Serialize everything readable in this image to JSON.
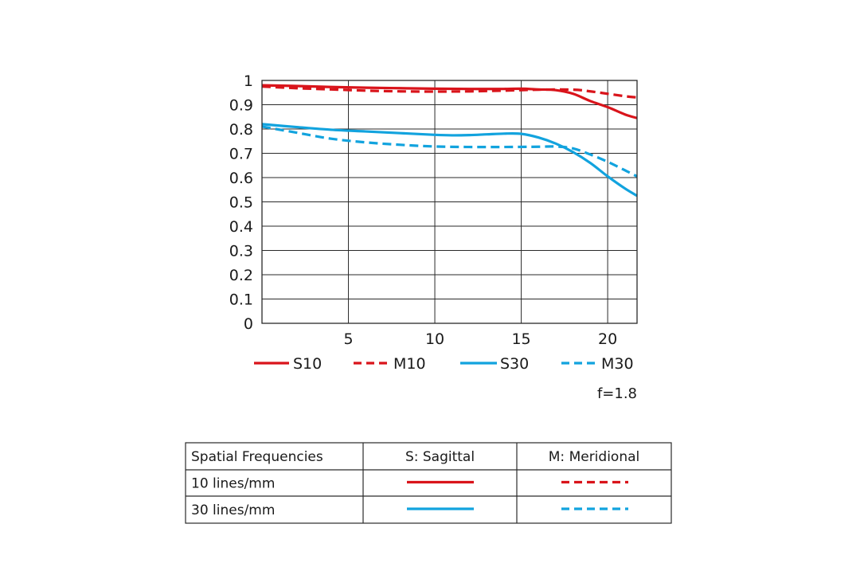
{
  "chart_data": {
    "type": "line",
    "xlim": [
      0,
      21.7
    ],
    "ylim": [
      0,
      1
    ],
    "x_ticks": [
      5,
      10,
      15,
      20
    ],
    "y_ticks": [
      {
        "value": 0,
        "label": "0"
      },
      {
        "value": 0.1,
        "label": "0.1"
      },
      {
        "value": 0.2,
        "label": "0.2"
      },
      {
        "value": 0.3,
        "label": "0.3"
      },
      {
        "value": 0.4,
        "label": "0.4"
      },
      {
        "value": 0.5,
        "label": "0.5"
      },
      {
        "value": 0.6,
        "label": "0.6"
      },
      {
        "value": 0.7,
        "label": "0.7"
      },
      {
        "value": 0.8,
        "label": "0.8"
      },
      {
        "value": 0.9,
        "label": "0.9"
      },
      {
        "value": 1,
        "label": "1"
      }
    ],
    "grid": true,
    "legend_position": "bottom",
    "series": [
      {
        "name": "S10",
        "color": "#d9141b",
        "dashed": false,
        "x": [
          0,
          2,
          4,
          6,
          8,
          10,
          12,
          14,
          15,
          16,
          17,
          18,
          19,
          20,
          21,
          21.7
        ],
        "y": [
          0.98,
          0.977,
          0.973,
          0.97,
          0.968,
          0.966,
          0.965,
          0.965,
          0.966,
          0.963,
          0.96,
          0.945,
          0.915,
          0.89,
          0.86,
          0.845
        ]
      },
      {
        "name": "M10",
        "color": "#d9141b",
        "dashed": true,
        "x": [
          0,
          2,
          4,
          6,
          8,
          10,
          12,
          14,
          16,
          18,
          19,
          20,
          21,
          21.7
        ],
        "y": [
          0.975,
          0.968,
          0.963,
          0.958,
          0.955,
          0.954,
          0.955,
          0.958,
          0.962,
          0.962,
          0.955,
          0.945,
          0.935,
          0.93
        ]
      },
      {
        "name": "S30",
        "color": "#12a3de",
        "dashed": false,
        "x": [
          0,
          2,
          4,
          6,
          8,
          10,
          11,
          12,
          13,
          14,
          15,
          16,
          17,
          18,
          19,
          20,
          21,
          21.7
        ],
        "y": [
          0.82,
          0.808,
          0.797,
          0.79,
          0.783,
          0.776,
          0.774,
          0.775,
          0.778,
          0.781,
          0.78,
          0.765,
          0.74,
          0.705,
          0.66,
          0.605,
          0.555,
          0.525
        ]
      },
      {
        "name": "M30",
        "color": "#12a3de",
        "dashed": true,
        "x": [
          0,
          2,
          4,
          6,
          8,
          10,
          12,
          14,
          16,
          17,
          18,
          19,
          20,
          21,
          21.7
        ],
        "y": [
          0.81,
          0.785,
          0.76,
          0.745,
          0.735,
          0.728,
          0.726,
          0.726,
          0.727,
          0.728,
          0.72,
          0.695,
          0.665,
          0.63,
          0.605
        ]
      }
    ],
    "annotation": "f=1.8",
    "table": {
      "headers": [
        "Spatial Frequencies",
        "S: Sagittal",
        "M: Meridional"
      ],
      "rows": [
        {
          "label": "10 lines/mm",
          "color": "#d9141b"
        },
        {
          "label": "30 lines/mm",
          "color": "#12a3de"
        }
      ]
    }
  }
}
